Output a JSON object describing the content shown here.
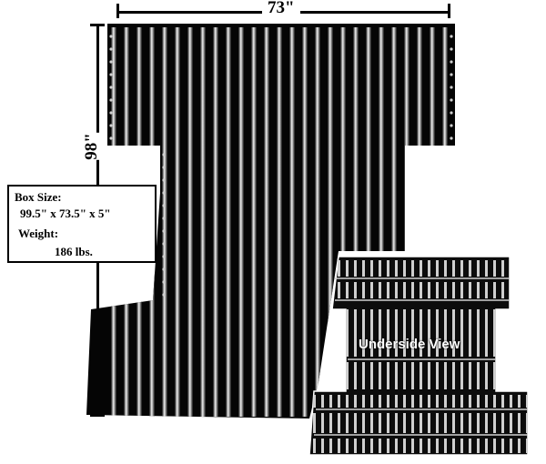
{
  "dimensions": {
    "width_label": "73\"",
    "length_label": "98\""
  },
  "specs": {
    "box_size_title": "Box Size:",
    "box_size_value": "99.5\" x 73.5\" x 5\"",
    "weight_title": "Weight:",
    "weight_value": "186 lbs."
  },
  "inset": {
    "label": "Underside View"
  },
  "colors": {
    "panel": "#0a0a0a",
    "rib_highlight": "#e6e6e6",
    "background": "#ffffff"
  }
}
